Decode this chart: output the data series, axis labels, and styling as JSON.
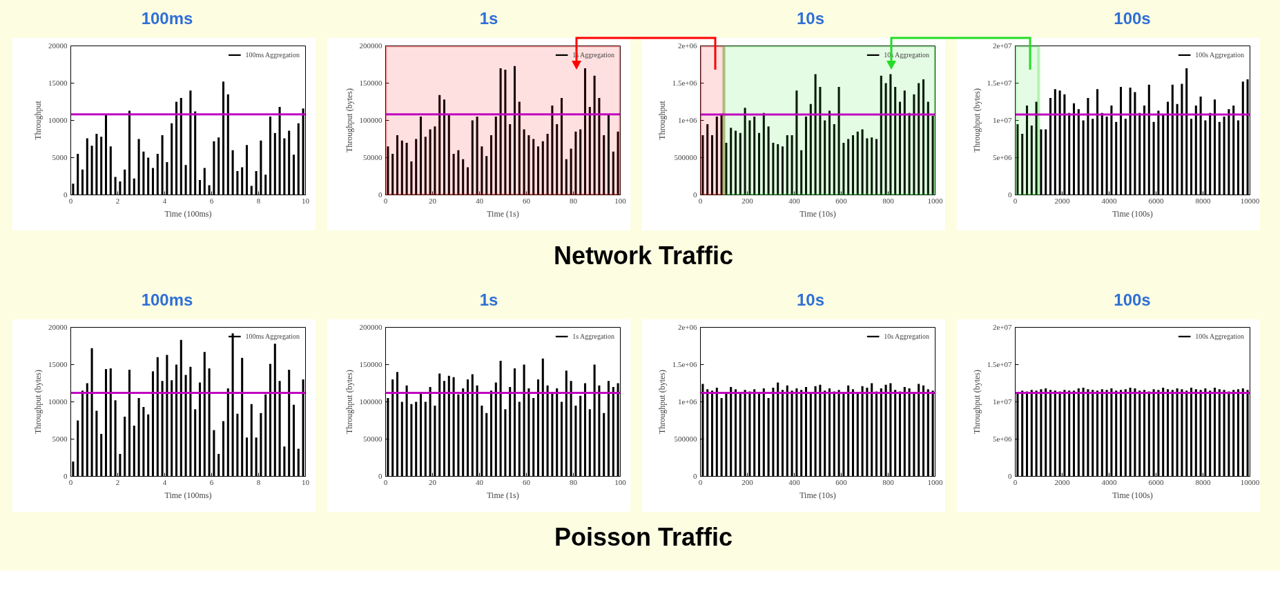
{
  "chart_data": [
    {
      "type": "bar",
      "title": "100ms",
      "xlabel": "Time (100ms)",
      "ylabel": "Throughput",
      "legend": "top right",
      "xlim": [
        0,
        10
      ],
      "xticks": [
        0,
        2,
        4,
        6,
        8,
        10
      ],
      "ylim": [
        0,
        20000
      ],
      "yticks": [
        0,
        5000,
        10000,
        15000,
        20000
      ],
      "x": [
        0.1,
        0.3,
        0.5,
        0.7,
        0.9,
        1.1,
        1.3,
        1.5,
        1.7,
        1.9,
        2.1,
        2.3,
        2.5,
        2.7,
        2.9,
        3.1,
        3.3,
        3.5,
        3.7,
        3.9,
        4.1,
        4.3,
        4.5,
        4.7,
        4.9,
        5.1,
        5.3,
        5.5,
        5.7,
        5.9,
        6.1,
        6.3,
        6.5,
        6.7,
        6.9,
        7.1,
        7.3,
        7.5,
        7.7,
        7.9,
        8.1,
        8.3,
        8.5,
        8.7,
        8.9,
        9.1,
        9.3,
        9.5,
        9.7,
        9.9
      ],
      "series": [
        {
          "name": "100ms Aggregation",
          "color": "#000000",
          "values": [
            1500,
            5500,
            3400,
            7600,
            6600,
            8200,
            7800,
            10800,
            6500,
            2400,
            1800,
            3400,
            11300,
            2200,
            7500,
            5800,
            5000,
            3600,
            5500,
            8000,
            4400,
            9600,
            12500,
            13000,
            4000,
            14000,
            11200,
            2000,
            3600,
            1300,
            7200,
            7700,
            15200,
            13500,
            6000,
            3200,
            3700,
            6700,
            1200,
            3200,
            7300,
            2700,
            10500,
            8300,
            11800,
            7600,
            8600,
            5400,
            9600,
            11600
          ]
        }
      ],
      "ref_lines": [
        {
          "axis": "y",
          "value": 10800,
          "color": "#c000c0"
        }
      ]
    },
    {
      "type": "bar",
      "title": "1s",
      "xlabel": "Time (1s)",
      "ylabel": "Throughput (bytes)",
      "legend": "top right",
      "xlim": [
        0,
        100
      ],
      "xticks": [
        0,
        20,
        40,
        60,
        80,
        100
      ],
      "ylim": [
        0,
        200000
      ],
      "yticks": [
        0,
        50000,
        100000,
        150000,
        200000
      ],
      "x": [
        1,
        3,
        5,
        7,
        9,
        11,
        13,
        15,
        17,
        19,
        21,
        23,
        25,
        27,
        29,
        31,
        33,
        35,
        37,
        39,
        41,
        43,
        45,
        47,
        49,
        51,
        53,
        55,
        57,
        59,
        61,
        63,
        65,
        67,
        69,
        71,
        73,
        75,
        77,
        79,
        81,
        83,
        85,
        87,
        89,
        91,
        93,
        95,
        97,
        99
      ],
      "series": [
        {
          "name": "1s Aggregation",
          "color": "#000000",
          "values": [
            65000,
            55000,
            80000,
            73000,
            70000,
            45000,
            75000,
            105000,
            78000,
            88000,
            92000,
            134000,
            128000,
            108000,
            55000,
            60000,
            48000,
            37000,
            100000,
            105000,
            65000,
            52000,
            80000,
            105000,
            170000,
            168000,
            95000,
            173000,
            125000,
            88000,
            80000,
            75000,
            65000,
            72000,
            82000,
            120000,
            95000,
            130000,
            48000,
            62000,
            85000,
            88000,
            170000,
            118000,
            160000,
            130000,
            80000,
            108000,
            58000,
            85000
          ]
        }
      ],
      "ref_lines": [
        {
          "axis": "y",
          "value": 108000,
          "color": "#c000c0"
        }
      ],
      "bands": [
        {
          "axis": "x",
          "from": 0,
          "to": 100,
          "color": "#ff0000"
        }
      ]
    },
    {
      "type": "bar",
      "title": "10s",
      "xlabel": "Time (10s)",
      "ylabel": "Throughput",
      "legend": "top right",
      "xlim": [
        0,
        1000
      ],
      "xticks": [
        0,
        200,
        400,
        600,
        800,
        1000
      ],
      "ylim": [
        0,
        2000000
      ],
      "yticks": [
        0,
        500000,
        {
          "value": 1000000,
          "label": "1e+06"
        },
        {
          "value": 1500000,
          "label": "1.5e+06"
        },
        {
          "value": 2000000,
          "label": "2e+06"
        }
      ],
      "x": [
        10,
        30,
        50,
        70,
        90,
        110,
        130,
        150,
        170,
        190,
        210,
        230,
        250,
        270,
        290,
        310,
        330,
        350,
        370,
        390,
        410,
        430,
        450,
        470,
        490,
        510,
        530,
        550,
        570,
        590,
        610,
        630,
        650,
        670,
        690,
        710,
        730,
        750,
        770,
        790,
        810,
        830,
        850,
        870,
        890,
        910,
        930,
        950,
        970,
        990
      ],
      "series": [
        {
          "name": "10s Aggregation",
          "color": "#000000",
          "values": [
            800000,
            950000,
            800000,
            1050000,
            1090000,
            700000,
            900000,
            860000,
            830000,
            1170000,
            1000000,
            1050000,
            830000,
            1100000,
            920000,
            700000,
            680000,
            650000,
            800000,
            800000,
            1400000,
            600000,
            1050000,
            1220000,
            1620000,
            1450000,
            1000000,
            1130000,
            950000,
            1450000,
            700000,
            750000,
            800000,
            850000,
            880000,
            760000,
            770000,
            750000,
            1600000,
            1500000,
            1620000,
            1450000,
            1250000,
            1400000,
            1100000,
            1350000,
            1500000,
            1550000,
            1250000,
            1060000
          ]
        }
      ],
      "ref_lines": [
        {
          "axis": "y",
          "value": 1078000,
          "color": "#c000c0"
        }
      ],
      "bands": [
        {
          "axis": "x",
          "from": 0,
          "to": 100,
          "color": "#ff0000"
        },
        {
          "axis": "x",
          "from": 100,
          "to": 1000,
          "color": "#22dd22"
        }
      ]
    },
    {
      "type": "bar",
      "title": "100s",
      "xlabel": "Time (100s)",
      "ylabel": "Throughput (bytes)",
      "legend": "top right",
      "xlim": [
        0,
        10000
      ],
      "xticks": [
        0,
        2000,
        4000,
        6000,
        8000,
        10000
      ],
      "ylim": [
        0,
        20000000
      ],
      "yticks": [
        0,
        {
          "value": 5000000,
          "label": "5e+06"
        },
        {
          "value": 10000000,
          "label": "1e+07"
        },
        {
          "value": 15000000,
          "label": "1.5e+07"
        },
        {
          "value": 20000000,
          "label": "2e+07"
        }
      ],
      "x": [
        100,
        300,
        500,
        700,
        900,
        1100,
        1300,
        1500,
        1700,
        1900,
        2100,
        2300,
        2500,
        2700,
        2900,
        3100,
        3300,
        3500,
        3700,
        3900,
        4100,
        4300,
        4500,
        4700,
        4900,
        5100,
        5300,
        5500,
        5700,
        5900,
        6100,
        6300,
        6500,
        6700,
        6900,
        7100,
        7300,
        7500,
        7700,
        7900,
        8100,
        8300,
        8500,
        8700,
        8900,
        9100,
        9300,
        9500,
        9700,
        9900
      ],
      "series": [
        {
          "name": "100s Aggregation",
          "color": "#000000",
          "values": [
            9500000,
            8200000,
            12000000,
            9300000,
            12500000,
            8800000,
            8800000,
            13000000,
            14200000,
            14000000,
            13500000,
            11000000,
            12300000,
            11500000,
            10000000,
            13000000,
            10200000,
            14200000,
            11000000,
            10500000,
            12000000,
            9800000,
            14500000,
            10200000,
            14400000,
            13800000,
            11000000,
            12000000,
            14800000,
            9800000,
            11300000,
            10800000,
            12500000,
            14800000,
            12200000,
            14900000,
            17000000,
            10200000,
            12000000,
            13200000,
            10000000,
            11000000,
            12800000,
            9800000,
            10500000,
            11500000,
            12000000,
            10000000,
            15200000,
            15500000
          ]
        }
      ],
      "ref_lines": [
        {
          "axis": "y",
          "value": 10780000,
          "color": "#c000c0"
        }
      ],
      "bands": [
        {
          "axis": "x",
          "from": 0,
          "to": 1000,
          "color": "#22dd22"
        }
      ]
    },
    {
      "type": "other",
      "title": "Network Traffic"
    },
    {
      "type": "bar",
      "title": "100ms",
      "xlabel": "Time (100ms)",
      "ylabel": "Throughput (bytes)",
      "legend": "top right",
      "xlim": [
        0,
        10
      ],
      "xticks": [
        0,
        2,
        4,
        6,
        8,
        10
      ],
      "ylim": [
        0,
        20000
      ],
      "yticks": [
        0,
        5000,
        10000,
        15000,
        20000
      ],
      "x": [
        0.1,
        0.3,
        0.5,
        0.7,
        0.9,
        1.1,
        1.3,
        1.5,
        1.7,
        1.9,
        2.1,
        2.3,
        2.5,
        2.7,
        2.9,
        3.1,
        3.3,
        3.5,
        3.7,
        3.9,
        4.1,
        4.3,
        4.5,
        4.7,
        4.9,
        5.1,
        5.3,
        5.5,
        5.7,
        5.9,
        6.1,
        6.3,
        6.5,
        6.7,
        6.9,
        7.1,
        7.3,
        7.5,
        7.7,
        7.9,
        8.1,
        8.3,
        8.5,
        8.7,
        8.9,
        9.1,
        9.3,
        9.5,
        9.7,
        9.9
      ],
      "series": [
        {
          "name": "100ms Aggregation",
          "color": "#000000",
          "values": [
            2000,
            7500,
            11500,
            12500,
            17200,
            8800,
            5700,
            14400,
            14500,
            10200,
            3000,
            8000,
            14300,
            6800,
            10500,
            9300,
            8300,
            14100,
            16000,
            12800,
            16300,
            12900,
            15000,
            18300,
            13600,
            14700,
            9000,
            12600,
            16700,
            14500,
            6200,
            3000,
            7400,
            11800,
            19200,
            8400,
            15900,
            5200,
            9700,
            5200,
            8500,
            11000,
            15100,
            17800,
            12800,
            4000,
            14300,
            9600,
            3700,
            13000
          ]
        }
      ],
      "ref_lines": [
        {
          "axis": "y",
          "value": 11200,
          "color": "#c000c0"
        }
      ]
    },
    {
      "type": "bar",
      "title": "1s",
      "xlabel": "Time (1s)",
      "ylabel": "Throughput (bytes)",
      "legend": "top right",
      "xlim": [
        0,
        100
      ],
      "xticks": [
        0,
        20,
        40,
        60,
        80,
        100
      ],
      "ylim": [
        0,
        200000
      ],
      "yticks": [
        0,
        50000,
        100000,
        150000,
        200000
      ],
      "x": [
        1,
        3,
        5,
        7,
        9,
        11,
        13,
        15,
        17,
        19,
        21,
        23,
        25,
        27,
        29,
        31,
        33,
        35,
        37,
        39,
        41,
        43,
        45,
        47,
        49,
        51,
        53,
        55,
        57,
        59,
        61,
        63,
        65,
        67,
        69,
        71,
        73,
        75,
        77,
        79,
        81,
        83,
        85,
        87,
        89,
        91,
        93,
        95,
        97,
        99
      ],
      "series": [
        {
          "name": "1s Aggregation",
          "color": "#000000",
          "values": [
            105000,
            130000,
            140000,
            100000,
            122000,
            97000,
            100000,
            112000,
            100000,
            120000,
            95000,
            138000,
            128000,
            135000,
            133000,
            110000,
            118000,
            130000,
            137000,
            122000,
            95000,
            85000,
            115000,
            126000,
            155000,
            90000,
            120000,
            145000,
            100000,
            150000,
            118000,
            105000,
            130000,
            158000,
            122000,
            112000,
            118000,
            100000,
            142000,
            128000,
            95000,
            108000,
            125000,
            90000,
            150000,
            122000,
            85000,
            128000,
            120000,
            125000
          ]
        }
      ],
      "ref_lines": [
        {
          "axis": "y",
          "value": 112000,
          "color": "#c000c0"
        }
      ]
    },
    {
      "type": "bar",
      "title": "10s",
      "xlabel": "Time (10s)",
      "ylabel": "Throughput (bytes)",
      "legend": "top right",
      "xlim": [
        0,
        1000
      ],
      "xticks": [
        0,
        200,
        400,
        600,
        800,
        1000
      ],
      "ylim": [
        0,
        2000000
      ],
      "yticks": [
        0,
        500000,
        {
          "value": 1000000,
          "label": "1e+06"
        },
        {
          "value": 1500000,
          "label": "1.5e+06"
        },
        {
          "value": 2000000,
          "label": "2e+06"
        }
      ],
      "x": [
        10,
        30,
        50,
        70,
        90,
        110,
        130,
        150,
        170,
        190,
        210,
        230,
        250,
        270,
        290,
        310,
        330,
        350,
        370,
        390,
        410,
        430,
        450,
        470,
        490,
        510,
        530,
        550,
        570,
        590,
        610,
        630,
        650,
        670,
        690,
        710,
        730,
        750,
        770,
        790,
        810,
        830,
        850,
        870,
        890,
        910,
        930,
        950,
        970,
        990
      ],
      "series": [
        {
          "name": "10s Aggregation",
          "color": "#000000",
          "values": [
            1240000,
            1170000,
            1150000,
            1190000,
            1050000,
            1130000,
            1200000,
            1170000,
            1130000,
            1160000,
            1140000,
            1170000,
            1120000,
            1180000,
            1050000,
            1190000,
            1260000,
            1160000,
            1220000,
            1150000,
            1180000,
            1160000,
            1200000,
            1120000,
            1210000,
            1230000,
            1150000,
            1180000,
            1140000,
            1160000,
            1120000,
            1220000,
            1170000,
            1130000,
            1210000,
            1190000,
            1250000,
            1140000,
            1180000,
            1230000,
            1250000,
            1160000,
            1140000,
            1200000,
            1180000,
            1130000,
            1240000,
            1220000,
            1170000,
            1150000
          ]
        }
      ],
      "ref_lines": [
        {
          "axis": "y",
          "value": 1120000,
          "color": "#c000c0"
        }
      ]
    },
    {
      "type": "bar",
      "title": "100s",
      "xlabel": "Time (100s)",
      "ylabel": "Throughput (bytes)",
      "legend": "top right",
      "xlim": [
        0,
        10000
      ],
      "xticks": [
        0,
        2000,
        4000,
        6000,
        8000,
        10000
      ],
      "ylim": [
        0,
        20000000
      ],
      "yticks": [
        0,
        {
          "value": 5000000,
          "label": "5e+06"
        },
        {
          "value": 10000000,
          "label": "1e+07"
        },
        {
          "value": 15000000,
          "label": "1.5e+07"
        },
        {
          "value": 20000000,
          "label": "2e+07"
        }
      ],
      "x": [
        100,
        300,
        500,
        700,
        900,
        1100,
        1300,
        1500,
        1700,
        1900,
        2100,
        2300,
        2500,
        2700,
        2900,
        3100,
        3300,
        3500,
        3700,
        3900,
        4100,
        4300,
        4500,
        4700,
        4900,
        5100,
        5300,
        5500,
        5700,
        5900,
        6100,
        6300,
        6500,
        6700,
        6900,
        7100,
        7300,
        7500,
        7700,
        7900,
        8100,
        8300,
        8500,
        8700,
        8900,
        9100,
        9300,
        9500,
        9700,
        9900
      ],
      "series": [
        {
          "name": "100s Aggregation",
          "color": "#000000",
          "values": [
            11300000,
            11500000,
            11400000,
            11600000,
            11500000,
            11700000,
            11800000,
            11600000,
            11500000,
            11400000,
            11600000,
            11500000,
            11500000,
            11800000,
            11900000,
            11700000,
            11600000,
            11500000,
            11700000,
            11600000,
            11800000,
            11500000,
            11600000,
            11700000,
            11900000,
            11800000,
            11500000,
            11600000,
            11400000,
            11700000,
            11600000,
            11900000,
            11700000,
            11600000,
            11800000,
            11700000,
            11500000,
            11900000,
            11700000,
            11600000,
            11800000,
            11500000,
            11900000,
            11700000,
            11600000,
            11400000,
            11600000,
            11700000,
            11800000,
            11600000
          ]
        }
      ],
      "ref_lines": [
        {
          "axis": "y",
          "value": 11200000,
          "color": "#c000c0"
        }
      ]
    },
    {
      "type": "other",
      "title": "Poisson Traffic"
    }
  ]
}
